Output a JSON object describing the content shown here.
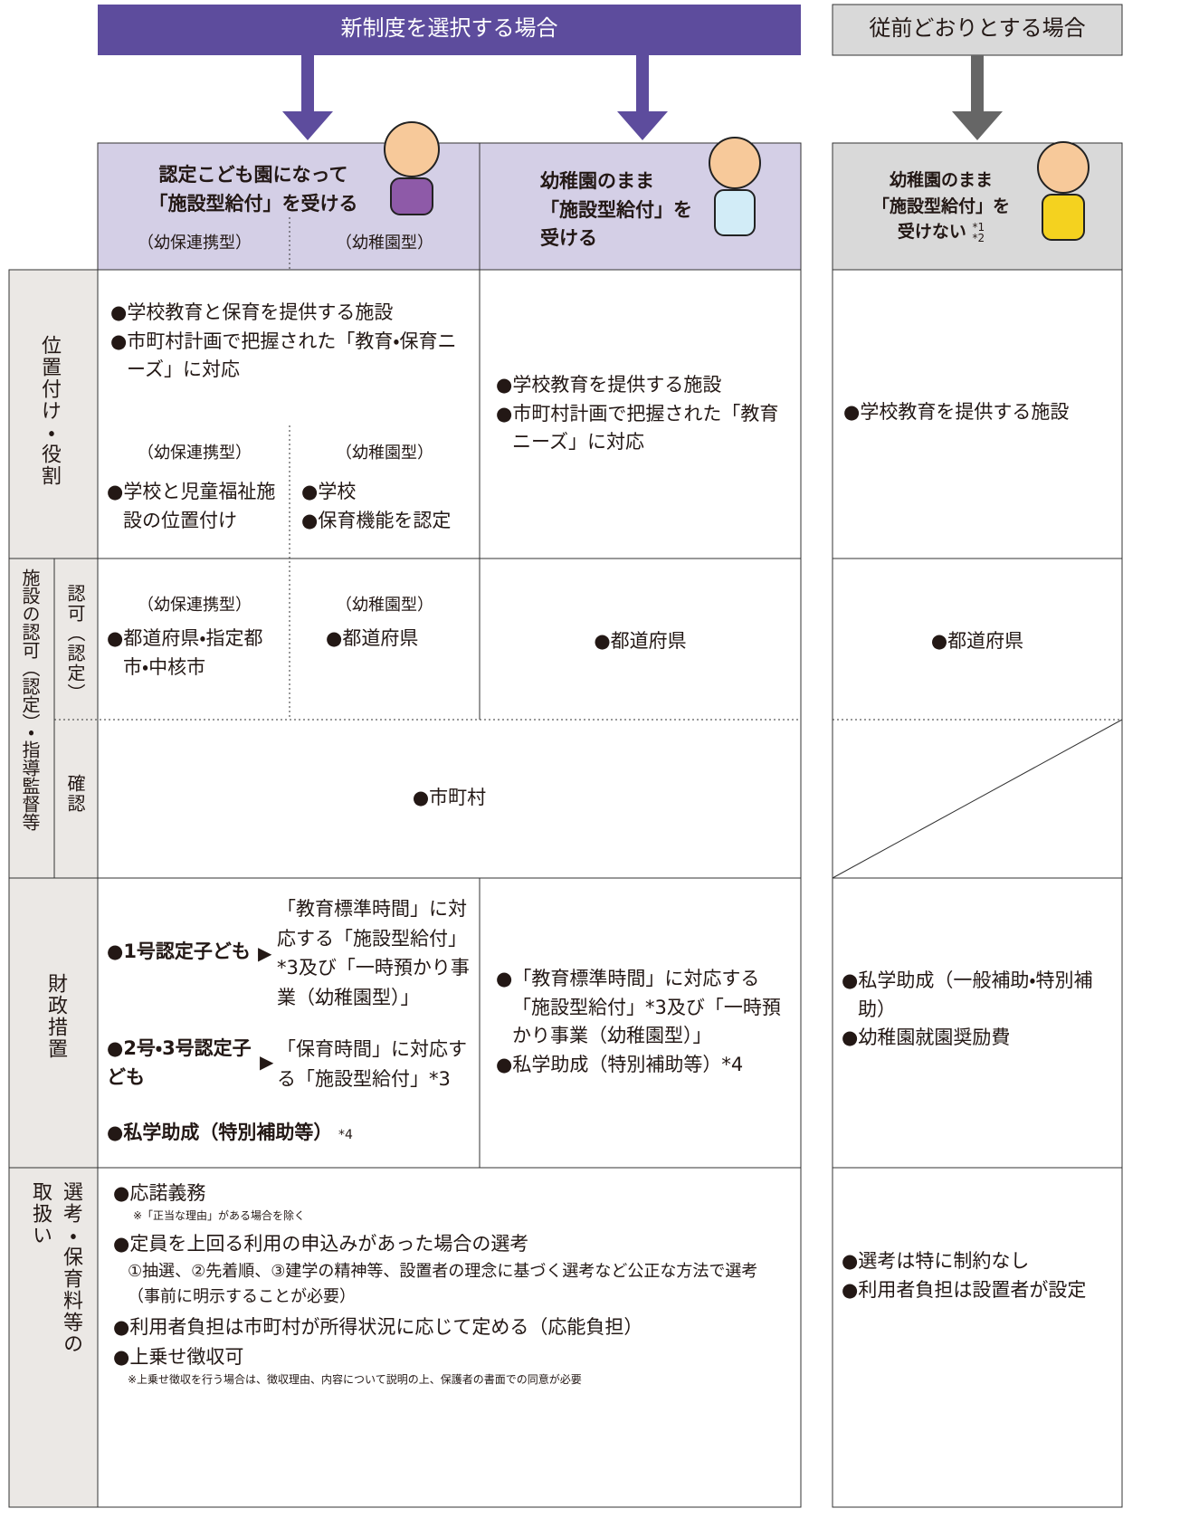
{
  "header": {
    "new_system": "新制度を選択する場合",
    "conventional": "従前どおりとする場合"
  },
  "columns": {
    "kodomoen": {
      "title": [
        "認定こども園になって",
        "「施設型給付」を受ける"
      ],
      "sub": [
        "（幼保連携型）",
        "（幼稚園型）"
      ]
    },
    "kindergarten": {
      "title": [
        "幼稚園のまま",
        "「施設型給付」を",
        "受ける"
      ]
    },
    "conventional": {
      "title": [
        "幼稚園のまま",
        "「施設型給付」を",
        "受けない"
      ],
      "notes": [
        "*1",
        "*2"
      ]
    }
  },
  "role": {
    "label": "位置付け・役割",
    "kodomoen": [
      "●学校教育と保育を提供する施設",
      "●市町村計画で把握された「教育・保育ニーズ」に対応"
    ],
    "yoho": {
      "type": "（幼保連携型）",
      "items": [
        "●学校と児童福祉施設の位置付け"
      ]
    },
    "youchien": {
      "type": "（幼稚園型）",
      "items": [
        "●学校",
        "●保育機能を認定"
      ]
    },
    "kindergarten": [
      "●学校教育を提供する施設",
      "●市町村計画で把握された「教育ニーズ」に対応"
    ],
    "conventional": [
      "●学校教育を提供する施設"
    ]
  },
  "approval": {
    "label": "施設の認可（認定）・指導監督等",
    "permit_label": "認可（認定）",
    "yoho": {
      "type": "（幼保連携型）",
      "text": "●都道府県・指定都市・中核市"
    },
    "youchien": {
      "type": "（幼稚園型）",
      "text": "●都道府県"
    },
    "kindergarten": "●都道府県",
    "conventional": "●都道府県",
    "confirm_label": "確認",
    "confirm": "●市町村"
  },
  "finance": {
    "label": "財政措置",
    "kodomoen": [
      {
        "who": "●1号認定子ども",
        "what": "「教育標準時間」に対応する「施設型給付」*3及び「一時預かり事業（幼稚園型）」"
      },
      {
        "who": "●2号・3号認定子ども",
        "what": "「保育時間」に対応する「施設型給付」*3"
      }
    ],
    "kodomoen_extra": "●私学助成（特別補助等）",
    "kodomoen_extra_note": "*4",
    "kindergarten": [
      "●「教育標準時間」に対応する「施設型給付」*3及び「一時預かり事業（幼稚園型）」",
      "●私学助成（特別補助等）*4"
    ],
    "conventional": [
      "●私学助成（一般補助・特別補助）",
      "●幼稚園就園奨励費"
    ]
  },
  "selection": {
    "label": [
      "選考・保育料等の",
      "取扱い"
    ],
    "items": [
      {
        "text": "●応諾義務",
        "note": "※「正当な理由」がある場合を除く"
      },
      {
        "text": "●定員を上回る利用の申込みがあった場合の選考",
        "note": "①抽選、②先着順、③建学の精神等、設置者の理念に基づく選考など公正な方法で選考（事前に明示することが必要）"
      },
      {
        "text": "●利用者負担は市町村が所得状況に応じて定める（応能負担）"
      },
      {
        "text": "●上乗せ徴収可",
        "note": "※上乗せ徴収を行う場合は、徴収理由、内容について説明の上、保護者の書面での同意が必要"
      }
    ],
    "conventional": [
      "●選考は特に制約なし",
      "●利用者負担は設置者が設定"
    ]
  }
}
